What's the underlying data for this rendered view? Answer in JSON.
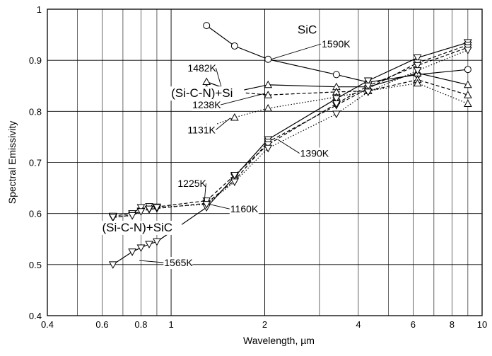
{
  "chart_data": {
    "type": "line",
    "xscale": "log",
    "xlabel": "Wavelength, µm",
    "ylabel": "Spectral Emissivity",
    "xlim": [
      0.4,
      10
    ],
    "ylim": [
      0.4,
      1.0
    ],
    "grid": true,
    "x_ticks": [
      {
        "value": 0.4,
        "label": "0.4"
      },
      {
        "value": 0.6,
        "label": "0.6"
      },
      {
        "value": 0.8,
        "label": "0.8"
      },
      {
        "value": 1,
        "label": "1"
      },
      {
        "value": 2,
        "label": "2"
      },
      {
        "value": 4,
        "label": "4"
      },
      {
        "value": 6,
        "label": "6"
      },
      {
        "value": 8,
        "label": "8"
      },
      {
        "value": 10,
        "label": "10"
      }
    ],
    "x_minor_grid": [
      0.5,
      0.6,
      0.7,
      0.8,
      0.9,
      3,
      4,
      5,
      6,
      7,
      8,
      9
    ],
    "y_ticks": [
      {
        "value": 0.4,
        "label": "0.4"
      },
      {
        "value": 0.5,
        "label": "0.5"
      },
      {
        "value": 0.6,
        "label": "0.6"
      },
      {
        "value": 0.7,
        "label": "0.7"
      },
      {
        "value": 0.8,
        "label": "0.8"
      },
      {
        "value": 0.9,
        "label": "0.9"
      },
      {
        "value": 1.0,
        "label": "1"
      }
    ],
    "series": [
      {
        "material": "SiC",
        "temperature": "1590K",
        "marker": "circle",
        "dash": "solid",
        "x": [
          1.3,
          1.6,
          2.05,
          3.4,
          4.3,
          6.2,
          9.0
        ],
        "y": [
          0.968,
          0.928,
          0.902,
          0.872,
          0.857,
          0.872,
          0.882
        ]
      },
      {
        "material": "(Si-C-N)+Si",
        "temperature": "1482K",
        "marker": "triangle-up",
        "dash": "solid",
        "x": [
          1.3,
          1.6,
          2.05,
          3.4,
          4.3,
          6.2,
          9.0
        ],
        "y": [
          0.858,
          0.838,
          0.852,
          0.848,
          0.848,
          0.875,
          0.852
        ]
      },
      {
        "material": "(Si-C-N)+Si",
        "temperature": "1238K",
        "marker": "triangle-up",
        "dash": "dashed",
        "x": [
          1.3,
          1.6,
          2.05,
          3.4,
          4.3,
          6.2,
          9.0
        ],
        "y": [
          0.845,
          0.838,
          0.832,
          0.838,
          0.84,
          0.862,
          0.832
        ]
      },
      {
        "material": "(Si-C-N)+Si",
        "temperature": "1131K",
        "marker": "triangle-up",
        "dash": "dotted",
        "x": [
          1.3,
          1.6,
          2.05,
          3.4,
          4.3,
          6.2,
          9.0
        ],
        "y": [
          0.768,
          0.788,
          0.806,
          0.828,
          0.84,
          0.855,
          0.815
        ]
      },
      {
        "material": "(Si-C-N)+SiC",
        "temperature": "1565K",
        "marker": "triangle-down",
        "dash": "solid",
        "x": [
          0.65,
          0.75,
          0.8,
          0.85,
          0.9,
          1.3,
          1.6,
          2.05,
          3.4,
          4.3,
          6.2,
          9.0
        ],
        "y": [
          0.5,
          0.525,
          0.533,
          0.54,
          0.545,
          0.612,
          0.672,
          0.745,
          0.825,
          0.86,
          0.905,
          0.935
        ]
      },
      {
        "material": "(Si-C-N)+SiC",
        "temperature": "1390K",
        "marker": "triangle-down",
        "dash": "dashed",
        "x": [
          0.65,
          0.75,
          0.8,
          0.85,
          0.9,
          1.3,
          1.6,
          2.05,
          3.4,
          4.3,
          6.2,
          9.0
        ],
        "y": [
          0.592,
          0.597,
          0.605,
          0.608,
          0.61,
          0.62,
          0.665,
          0.74,
          0.812,
          0.845,
          0.895,
          0.93
        ]
      },
      {
        "material": "(Si-C-N)+SiC",
        "temperature": "1225K",
        "marker": "triangle-down",
        "dash": "dashed",
        "x": [
          0.65,
          0.75,
          0.8,
          0.85,
          0.9,
          1.3,
          1.6,
          2.05,
          3.4,
          4.3,
          6.2,
          9.0
        ],
        "y": [
          0.595,
          0.6,
          0.612,
          0.614,
          0.613,
          0.625,
          0.675,
          0.735,
          0.815,
          0.85,
          0.89,
          0.925
        ]
      },
      {
        "material": "(Si-C-N)+SiC",
        "temperature": "1160K",
        "marker": "triangle-down",
        "dash": "dotted",
        "x": [
          0.65,
          0.75,
          0.8,
          0.85,
          0.9,
          1.3,
          1.6,
          2.05,
          3.4,
          4.3,
          6.2,
          9.0
        ],
        "y": [
          0.593,
          0.596,
          0.604,
          0.609,
          0.612,
          0.618,
          0.662,
          0.728,
          0.795,
          0.838,
          0.88,
          0.92
        ]
      }
    ],
    "annotations": [
      {
        "text": "SiC",
        "style": "big",
        "at": [
          2.55,
          0.952
        ]
      },
      {
        "text": "1590K",
        "at": [
          3.05,
          0.925
        ],
        "leader_to": [
          2.1,
          0.902
        ]
      },
      {
        "text": "1482K",
        "at": [
          1.13,
          0.878
        ],
        "leader_to": [
          1.45,
          0.848
        ]
      },
      {
        "text": "(Si-C-N)+Si",
        "style": "big",
        "at": [
          1.0,
          0.828
        ]
      },
      {
        "text": "1238K",
        "at": [
          1.17,
          0.806
        ],
        "leader_to": [
          2.0,
          0.835
        ]
      },
      {
        "text": "1131K",
        "at": [
          1.13,
          0.757
        ],
        "leader_to": [
          1.55,
          0.787
        ]
      },
      {
        "text": "1390K",
        "at": [
          2.6,
          0.711
        ],
        "leader_to": [
          2.2,
          0.745
        ]
      },
      {
        "text": "1225K",
        "at": [
          1.05,
          0.652
        ],
        "leader_to": [
          1.28,
          0.625
        ]
      },
      {
        "text": "1160K",
        "at": [
          1.55,
          0.602
        ],
        "leader_to": [
          1.33,
          0.618
        ]
      },
      {
        "text": "(Si-C-N)+SiC",
        "style": "big",
        "at": [
          0.6,
          0.565
        ]
      },
      {
        "text": "1565K",
        "at": [
          0.95,
          0.497
        ],
        "leader_to": [
          0.79,
          0.508
        ]
      }
    ]
  }
}
